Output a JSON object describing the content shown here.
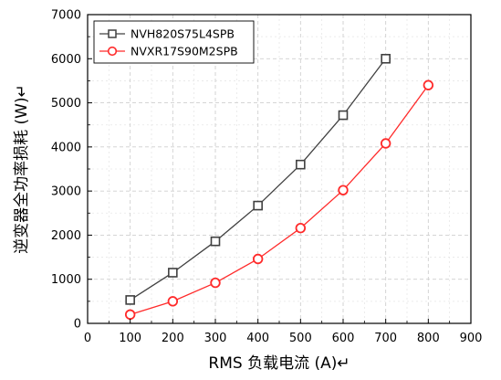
{
  "chart_data": {
    "type": "line",
    "xlabel": "RMS 负载电流 (A)↵",
    "ylabel": "逆变器全功率损耗 (W)↵",
    "xlim": [
      0,
      900
    ],
    "ylim": [
      0,
      7000
    ],
    "xticks": [
      "0",
      "100",
      "200",
      "300",
      "400",
      "500",
      "600",
      "700",
      "800",
      "900"
    ],
    "yticks": [
      "0",
      "1000",
      "2000",
      "3000",
      "4000",
      "5000",
      "6000",
      "7000"
    ],
    "grid": "dashed",
    "legend_position": "top-left",
    "series": [
      {
        "name": "NVH820S75L4SPB",
        "color": "#404040",
        "marker": "square",
        "x": [
          100,
          200,
          300,
          400,
          500,
          600,
          700
        ],
        "y": [
          530,
          1150,
          1860,
          2670,
          3600,
          4720,
          6000
        ]
      },
      {
        "name": "NVXR17S90M2SPB",
        "color": "#ff2a2a",
        "marker": "circle",
        "x": [
          100,
          200,
          300,
          400,
          500,
          600,
          700,
          800
        ],
        "y": [
          200,
          500,
          920,
          1460,
          2160,
          3020,
          4080,
          5400
        ]
      }
    ]
  }
}
